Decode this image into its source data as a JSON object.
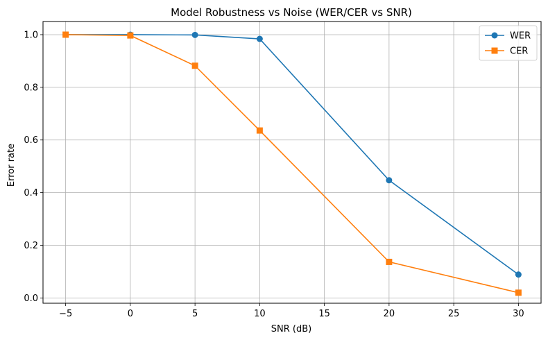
{
  "chart_data": {
    "type": "line",
    "title": "Model Robustness vs Noise (WER/CER vs SNR)",
    "xlabel": "SNR (dB)",
    "ylabel": "Error rate",
    "x": [
      -5,
      0,
      5,
      10,
      20,
      30
    ],
    "xlim": [
      -6.75,
      31.75
    ],
    "ylim": [
      -0.02,
      1.05
    ],
    "xticks": [
      -5,
      0,
      5,
      10,
      15,
      20,
      25,
      30
    ],
    "xtick_labels": [
      "−5",
      "0",
      "5",
      "10",
      "15",
      "20",
      "25",
      "30"
    ],
    "yticks": [
      0.0,
      0.2,
      0.4,
      0.6,
      0.8,
      1.0
    ],
    "ytick_labels": [
      "0.0",
      "0.2",
      "0.4",
      "0.6",
      "0.8",
      "1.0"
    ],
    "grid": true,
    "legend_position": "top-right",
    "series": [
      {
        "name": "WER",
        "color": "#1f77b4",
        "marker": "circle",
        "values": [
          1.0,
          1.0,
          0.999,
          0.984,
          0.447,
          0.089
        ]
      },
      {
        "name": "CER",
        "color": "#ff7f0e",
        "marker": "square",
        "values": [
          1.0,
          0.997,
          0.882,
          0.636,
          0.137,
          0.02
        ]
      }
    ]
  }
}
